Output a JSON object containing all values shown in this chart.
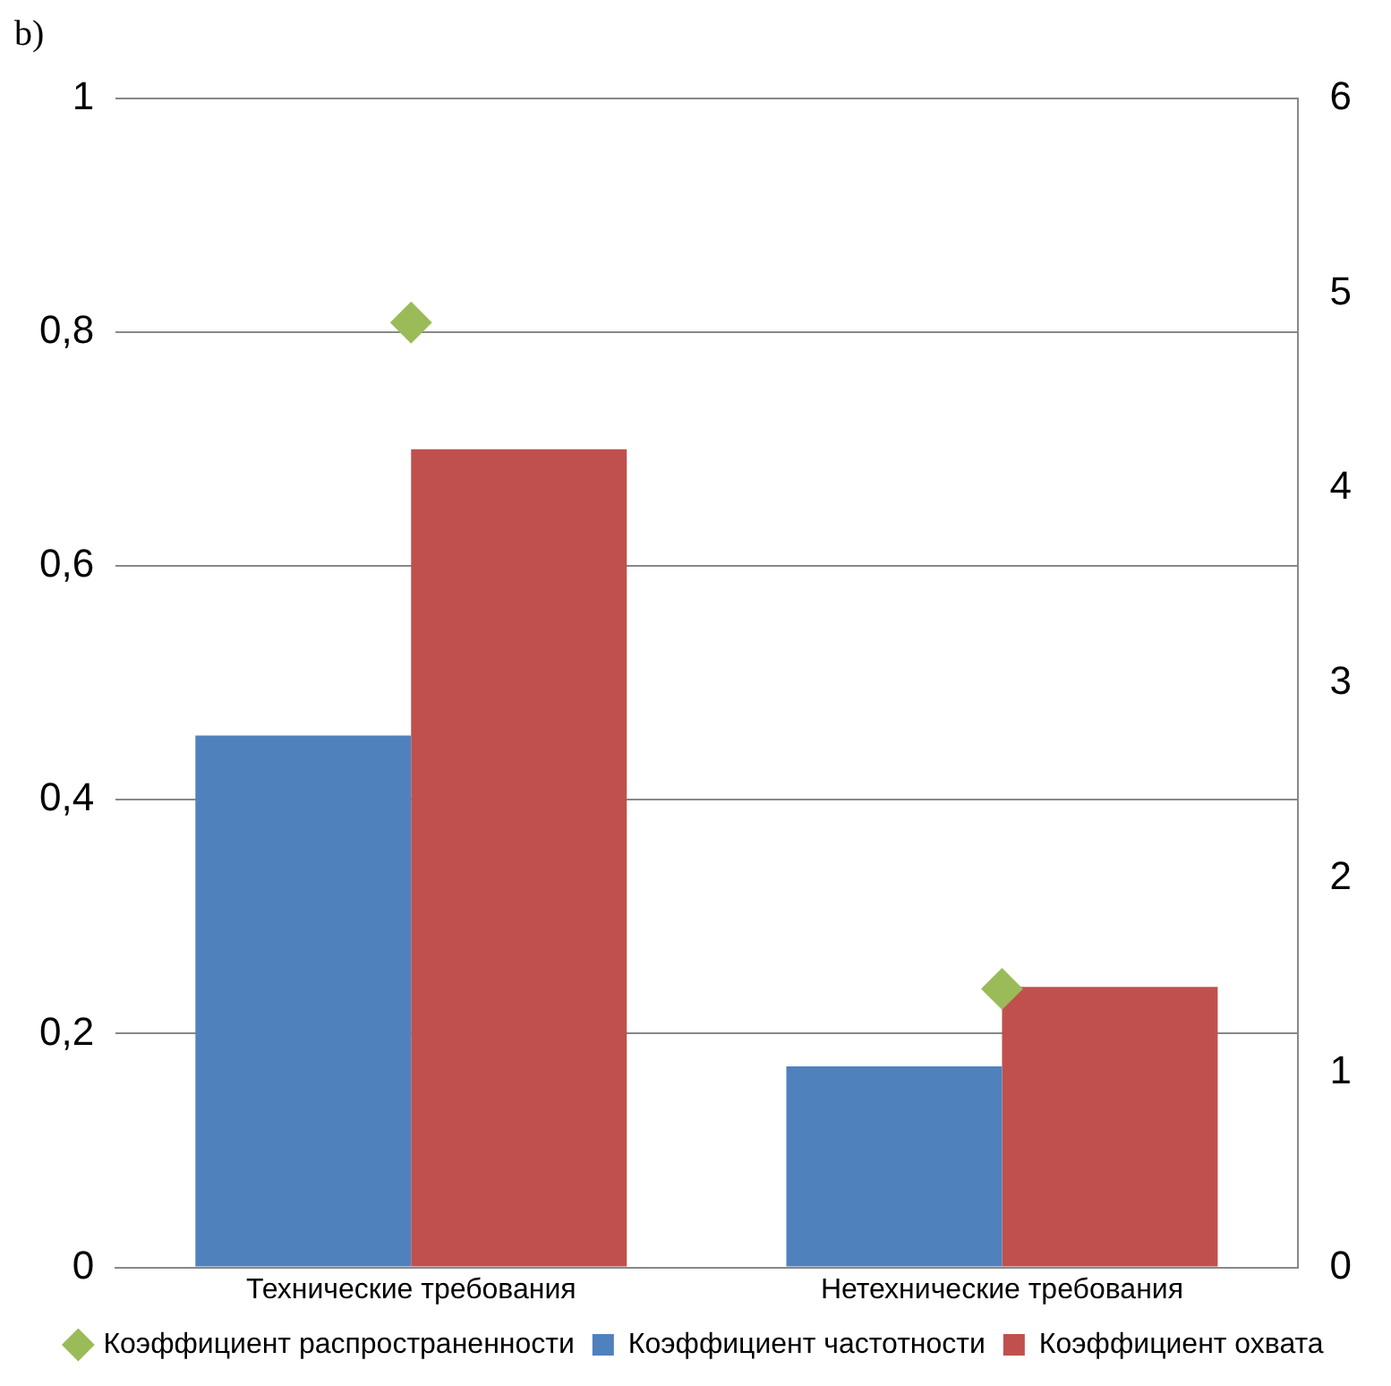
{
  "chart_data": {
    "type": "bar",
    "title": "b)",
    "categories": [
      "Технические требования",
      "Нетехнические требования"
    ],
    "series": [
      {
        "name": "Коэффициент частотности",
        "color": "#4f81bd",
        "values": [
          0.455,
          0.172
        ]
      },
      {
        "name": "Коэффициент охвата",
        "color": "#c0504d",
        "values": [
          0.7,
          0.24
        ]
      },
      {
        "name": "Коэффициент распространенности",
        "type": "scatter",
        "axis": "y2",
        "color": "#9bbb59",
        "x": [
          "Технические требования",
          "Нетехнические требования"
        ],
        "values": [
          4.85,
          1.43
        ]
      }
    ],
    "ylim": [
      0,
      1
    ],
    "yticks": [
      0,
      {
        "value": 0.2,
        "label": "0,2"
      },
      {
        "value": 0.4,
        "label": "0,4"
      },
      {
        "value": 0.6,
        "label": "0,6"
      },
      {
        "value": 0.8,
        "label": "0,8"
      },
      1
    ],
    "y2lim": [
      0,
      6
    ],
    "y2ticks": [
      0,
      1,
      2,
      3,
      4,
      5,
      6
    ],
    "grid": "y",
    "legend": "bottom",
    "marker": "diamond"
  }
}
